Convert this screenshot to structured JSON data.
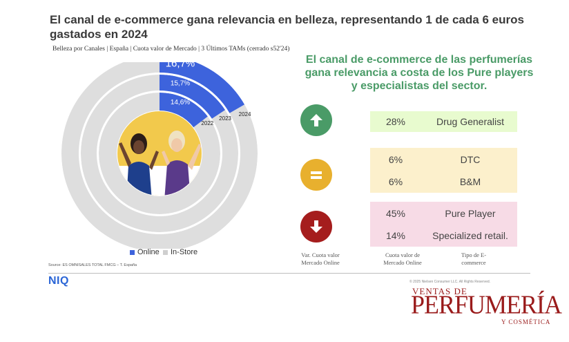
{
  "header": {
    "title": "El canal de e-commerce gana relevancia en belleza, representando 1 de cada 6 euros\ngastados  en 2024",
    "subtitle": "Belleza por Canales | España | Cuota valor de Mercado | 3 Últimos TAMs (cerrado s52'24)"
  },
  "chart_data": {
    "type": "pie",
    "title": "El canal de e-commerce gana relevancia en belleza, representando 1 de cada 6 euros gastados  en 2024",
    "subtitle": "Belleza por Canales | España | Cuota valor de Mercado | 3 Últimos TAMs (cerrado s52'24)",
    "rings": [
      "2022",
      "2023",
      "2024"
    ],
    "series": [
      {
        "name": "Online",
        "values": [
          14.6,
          15.7,
          16.7
        ],
        "labels": [
          "14,6%",
          "15,7%",
          "16,7%"
        ]
      },
      {
        "name": "In-Store",
        "values": [
          85.4,
          84.3,
          83.3
        ]
      }
    ],
    "legend_position": "bottom"
  },
  "legend": {
    "online": "Online",
    "instore": "In-Store"
  },
  "colors": {
    "online": "#3d63dc",
    "instore": "#dedede",
    "headline": "#4a9b67",
    "up": "#4a9b67",
    "equal": "#e8b02e",
    "down": "#a51d1d",
    "box_green": "#e8fbcf",
    "box_yellow": "#fcf0cc",
    "box_pink": "#f7dbe6",
    "logo": "#9a1b1b"
  },
  "source": "Source: ES OMNISALES TOTAL FMCG – T. España",
  "brand": "NIQ",
  "copyright": "© 2025 Nielsen Consumer LLC. All Rights Reserved.",
  "headline": "El canal de e-commerce de las perfumerías gana relevancia a costa de los Pure players y especialistas del sector.",
  "groups": [
    {
      "icon": "arrow-up-icon",
      "rows": [
        {
          "pct": "28%",
          "label": "Drug Generalist"
        }
      ]
    },
    {
      "icon": "equal-icon",
      "rows": [
        {
          "pct": "6%",
          "label": "DTC"
        },
        {
          "pct": "6%",
          "label": "B&M"
        }
      ]
    },
    {
      "icon": "arrow-down-icon",
      "rows": [
        {
          "pct": "45%",
          "label": "Pure Player"
        },
        {
          "pct": "14%",
          "label": "Specialized retail."
        }
      ]
    }
  ],
  "footers": {
    "var": "Var. Cuota valor\nMercado Online",
    "cuota": "Cuota valor de\nMercado Online",
    "tipo": "Tipo de E-\ncommerce"
  },
  "logo": {
    "line1": "VENTAS DE",
    "line2": "PERFUMERÍA",
    "line3": "Y COSMÉTICA",
    "reg": "®"
  }
}
